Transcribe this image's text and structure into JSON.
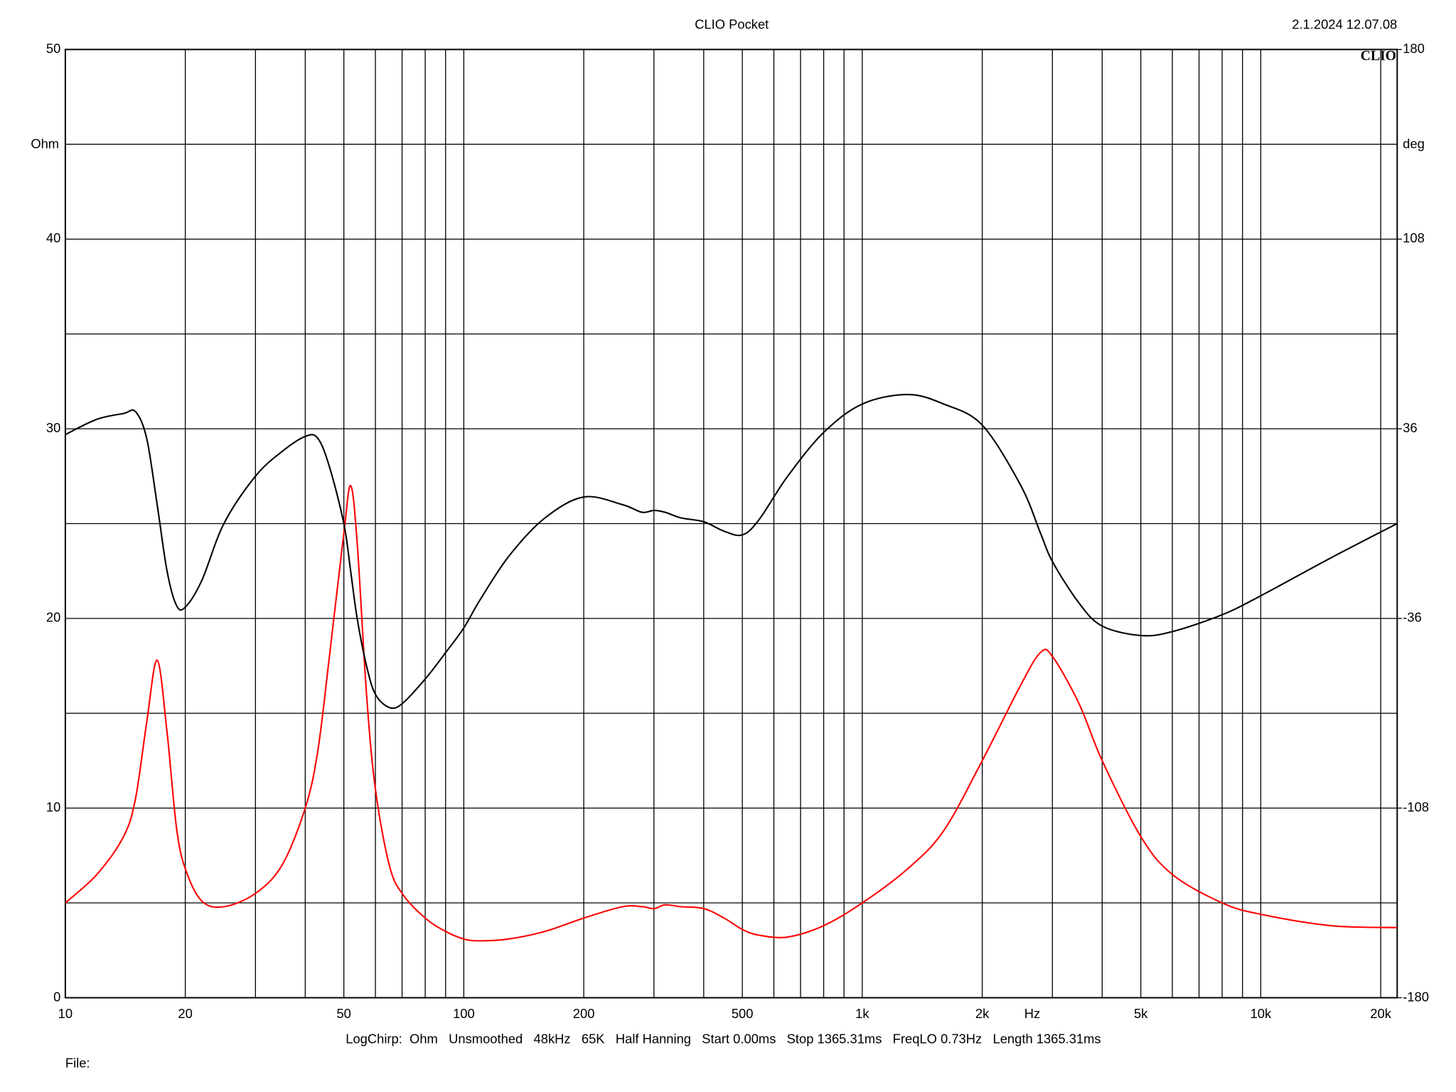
{
  "chart_data": {
    "type": "line",
    "title": "CLIO Pocket",
    "timestamp": "2.1.2024 12.07.08",
    "logo": "CLIO",
    "footer": "LogChirp:  Ohm   Unsmoothed   48kHz   65K   Half Hanning   Start 0.00ms   Stop 1365.31ms   FreqLO 0.73Hz   Length 1365.31ms",
    "file_label": "File:",
    "xlabel": "Hz",
    "ylabel": "Ohm",
    "y2label": "deg",
    "xscale": "log",
    "grid": true,
    "x": [
      10,
      12,
      14,
      15,
      16,
      17,
      18,
      19,
      20,
      22,
      25,
      30,
      35,
      40,
      43,
      46,
      50,
      52,
      54,
      57,
      60,
      65,
      70,
      80,
      90,
      100,
      110,
      130,
      160,
      200,
      250,
      280,
      300,
      320,
      350,
      400,
      450,
      500,
      550,
      650,
      800,
      1000,
      1300,
      1600,
      2000,
      2500,
      2800,
      3000,
      3500,
      4000,
      5000,
      6000,
      8000,
      10000,
      15000,
      22000
    ],
    "series": [
      {
        "name": "Ohm",
        "color": "#ff0000",
        "axis": "y",
        "values": [
          5.0,
          6.5,
          8.5,
          10.5,
          14.5,
          17.8,
          14,
          9,
          6.8,
          5.1,
          4.8,
          5.5,
          7,
          10,
          13,
          18,
          24.5,
          27,
          24,
          16,
          11,
          7,
          5.5,
          4.2,
          3.5,
          3.1,
          3.0,
          3.1,
          3.5,
          4.2,
          4.8,
          4.8,
          4.7,
          4.9,
          4.8,
          4.7,
          4.2,
          3.6,
          3.3,
          3.2,
          3.8,
          5.0,
          6.8,
          8.8,
          12.5,
          16.5,
          18.2,
          18.0,
          15.5,
          12.5,
          8.5,
          6.5,
          5.0,
          4.4,
          3.8,
          3.7
        ]
      },
      {
        "name": "deg",
        "color": "#000000",
        "axis": "y2",
        "values": [
          33.8,
          39.6,
          41.8,
          42.5,
          32.4,
          7.2,
          -18,
          -31,
          -31.7,
          -21.6,
          0,
          18,
          27.4,
          33.1,
          32.4,
          21.6,
          0,
          -18,
          -36,
          -54,
          -64.8,
          -69.8,
          -68.4,
          -59,
          -49,
          -39.6,
          -28.8,
          -12.2,
          2.2,
          10.1,
          7.2,
          4.3,
          5,
          4.3,
          2.2,
          0.7,
          -2.9,
          -4.3,
          1.4,
          18,
          34.6,
          45.4,
          49,
          45.4,
          37.4,
          14.4,
          -3.6,
          -14.4,
          -30.2,
          -38.9,
          -42.5,
          -41,
          -34.6,
          -27.4,
          -13,
          0
        ]
      }
    ],
    "xlim": [
      10,
      22000
    ],
    "xticks": [
      10,
      20,
      50,
      100,
      200,
      500,
      {
        "value": 1000,
        "label": "1k"
      },
      {
        "value": 2000,
        "label": "2k"
      },
      {
        "value": 5000,
        "label": "5k"
      },
      {
        "value": 10000,
        "label": "10k"
      },
      {
        "value": 20000,
        "label": "20k"
      }
    ],
    "xminorticks": [
      30,
      40,
      60,
      70,
      80,
      90,
      300,
      400,
      600,
      700,
      800,
      900,
      3000,
      4000,
      6000,
      7000,
      8000,
      9000
    ],
    "ylim": [
      0,
      50
    ],
    "yticks": [
      0,
      10,
      20,
      30,
      40,
      50
    ],
    "yminorticks": [
      5,
      15,
      25,
      35,
      45
    ],
    "y2lim": [
      -180,
      180
    ],
    "y2ticks": [
      -180,
      -108,
      -36,
      36,
      108,
      180
    ]
  }
}
